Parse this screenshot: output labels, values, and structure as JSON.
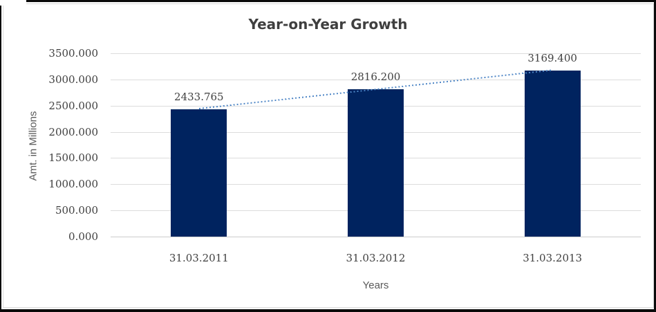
{
  "chart_data": {
    "type": "bar",
    "title": "Year-on-Year Growth",
    "categories": [
      "31.03.2011",
      "31.03.2012",
      "31.03.2013"
    ],
    "values": [
      2433.765,
      2816.2,
      3169.4
    ],
    "data_labels": [
      "2433.765",
      "2816.200",
      "3169.400"
    ],
    "xlabel": "Years",
    "ylabel": "Amt. in Millions",
    "ylim": [
      0,
      3500
    ],
    "ytick_step": 500,
    "ytick_labels": [
      "0.000",
      "500.000",
      "1000.000",
      "1500.000",
      "2000.000",
      "2500.000",
      "3000.000",
      "3500.000"
    ],
    "grid": true,
    "legend": false,
    "trendline": {
      "style": "dotted",
      "from_category": "31.03.2011",
      "to_category": "31.03.2013"
    },
    "colors": {
      "bar": "#00235f",
      "trendline": "#4e86c6",
      "gridline": "#dcdcdc",
      "axis_line": "#cccccc",
      "title_text": "#3f3f3f",
      "tick_text": "#404040",
      "axis_title_text": "#595959",
      "frame": "#0a0a0a"
    }
  }
}
